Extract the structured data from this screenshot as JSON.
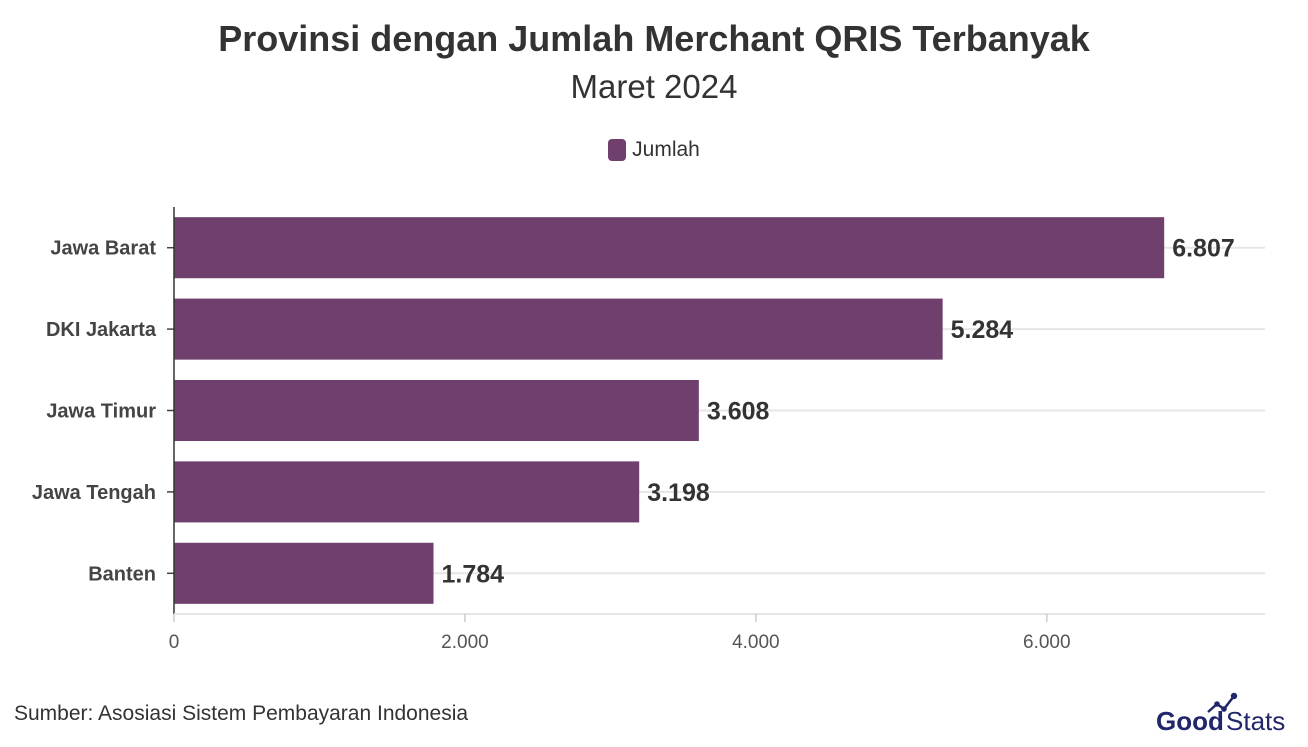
{
  "chart_data": {
    "type": "bar",
    "orientation": "horizontal",
    "title": "Provinsi dengan Jumlah Merchant QRIS Terbanyak",
    "subtitle": "Maret 2024",
    "categories": [
      "Jawa Barat",
      "DKI Jakarta",
      "Jawa Timur",
      "Jawa Tengah",
      "Banten"
    ],
    "series": [
      {
        "name": "Jumlah",
        "values": [
          6807,
          5284,
          3608,
          3198,
          1784
        ],
        "value_labels": [
          "6.807",
          "5.284",
          "3.608",
          "3.198",
          "1.784"
        ]
      }
    ],
    "xlim": [
      0,
      7500
    ],
    "xticks": [
      0,
      2000,
      4000,
      6000
    ],
    "xtick_labels": [
      "0",
      "2.000",
      "4.000",
      "6.000"
    ],
    "grid": true,
    "legend_position": "top-center",
    "bar_color": "#6f3f6d",
    "source": "Sumber: Asosiasi Sistem Pembayaran Indonesia"
  },
  "branding": {
    "logo_text_1": "Good",
    "logo_text_2": "Stats",
    "logo_color": "#22276b"
  }
}
